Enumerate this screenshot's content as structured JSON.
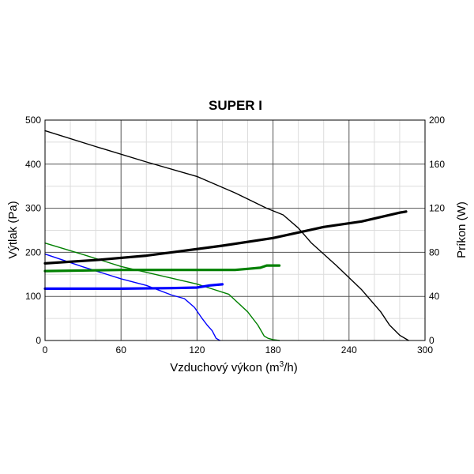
{
  "chart_data": {
    "type": "line",
    "title": "SUPER I",
    "xlabel": "Vzduchový výkon (m",
    "xlabel_sup": "3",
    "xlabel_tail": "/h)",
    "ylabel": "Výtlak (Pa)",
    "y2label": "Príkon (W)",
    "xlim": [
      0,
      300
    ],
    "ylim": [
      0,
      500
    ],
    "y2lim": [
      0,
      200
    ],
    "xticks": [
      0,
      60,
      120,
      180,
      240,
      300
    ],
    "yticks": [
      0,
      100,
      200,
      300,
      400,
      500
    ],
    "y2ticks": [
      0,
      40,
      80,
      120,
      160,
      200
    ],
    "grid": true,
    "series": [
      {
        "axis": "left",
        "color": "#000000",
        "weight": "thin",
        "x": [
          0,
          40,
          80,
          120,
          150,
          175,
          188,
          200,
          210,
          230,
          250,
          265,
          272,
          280,
          287
        ],
        "y": [
          476,
          440,
          405,
          372,
          335,
          300,
          285,
          255,
          222,
          170,
          115,
          65,
          35,
          12,
          0
        ]
      },
      {
        "axis": "left",
        "color": "#008000",
        "weight": "thin",
        "x": [
          0,
          30,
          60,
          90,
          120,
          145,
          160,
          168,
          173,
          176,
          180,
          185
        ],
        "y": [
          221,
          195,
          168,
          148,
          128,
          105,
          65,
          35,
          10,
          5,
          2,
          0
        ]
      },
      {
        "axis": "left",
        "color": "#0000ff",
        "weight": "thin",
        "x": [
          0,
          30,
          60,
          80,
          100,
          110,
          118,
          124,
          128,
          132,
          135,
          138
        ],
        "y": [
          196,
          167,
          140,
          125,
          103,
          95,
          75,
          50,
          35,
          22,
          5,
          0
        ]
      },
      {
        "axis": "right",
        "color": "#000000",
        "weight": "thick",
        "x": [
          0,
          40,
          80,
          100,
          140,
          180,
          200,
          220,
          250,
          280,
          285
        ],
        "y": [
          70,
          73,
          77,
          80,
          86,
          93,
          98,
          103,
          108,
          116,
          117
        ]
      },
      {
        "axis": "right",
        "color": "#008000",
        "weight": "thick",
        "x": [
          0,
          60,
          120,
          150,
          160,
          170,
          175,
          185
        ],
        "y": [
          63,
          64,
          64,
          64,
          65,
          66,
          68,
          68
        ]
      },
      {
        "axis": "right",
        "color": "#0000ff",
        "weight": "thick",
        "x": [
          0,
          60,
          100,
          120,
          130,
          140
        ],
        "y": [
          47,
          47,
          47.5,
          48,
          50,
          51
        ]
      }
    ]
  }
}
